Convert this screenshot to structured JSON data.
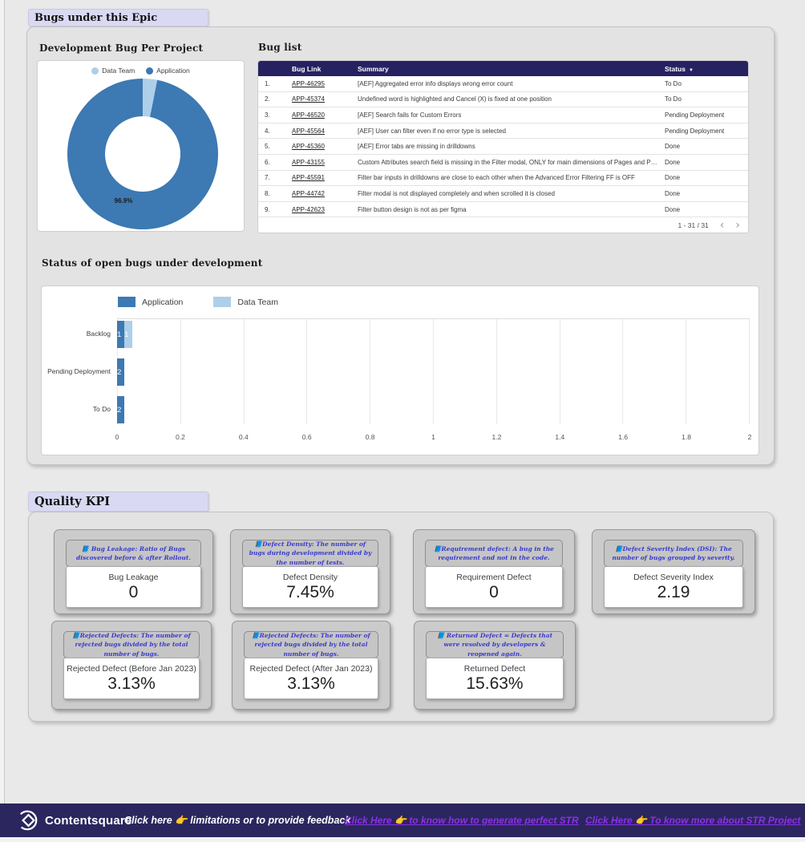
{
  "sections": {
    "bugs_title": "Bugs under this Epic",
    "kpi_title": "Quality KPI"
  },
  "colors": {
    "application": "#3D79B2",
    "data_team": "#AECFE9",
    "header_navy": "#262262",
    "footer_navy": "#2B265E",
    "link_purple": "#8B30E8",
    "lavender": "#D9D9F3",
    "tooltip_blue": "#3A3ACC"
  },
  "icons": {
    "sort_desc": "▼",
    "chevron_left": "‹",
    "chevron_right": "›"
  },
  "bug_list": {
    "title": "Bug list",
    "columns": {
      "link": "Bug Link",
      "summary": "Summary",
      "status": "Status"
    },
    "rows": [
      {
        "num": "1.",
        "link": "APP-46295",
        "summary": "[AEF] Aggregated error info displays wrong error count",
        "status": "To Do"
      },
      {
        "num": "2.",
        "link": "APP-45374",
        "summary": "Undefined word is highlighted and Cancel (X) is fixed at one position",
        "status": "To Do"
      },
      {
        "num": "3.",
        "link": "APP-46520",
        "summary": "[AEF] Search fails for Custom Errors",
        "status": "Pending Deployment"
      },
      {
        "num": "4.",
        "link": "APP-45564",
        "summary": "[AEF] User can filter even if no error type is selected",
        "status": "Pending Deployment"
      },
      {
        "num": "5.",
        "link": "APP-45360",
        "summary": "[AEF] Error tabs are missing in drilldowns",
        "status": "Done"
      },
      {
        "num": "6.",
        "link": "APP-43155",
        "summary": "Custom Attributes search field is missing in the Filter modal, ONLY for main dimensions of Pages and P…",
        "status": "Done"
      },
      {
        "num": "7.",
        "link": "APP-45591",
        "summary": "Filter bar inputs in drilldowns are close to each other when the Advanced Error Filtering FF is OFF",
        "status": "Done"
      },
      {
        "num": "8.",
        "link": "APP-44742",
        "summary": "Filter modal is not displayed completely and when scrolled it is closed",
        "status": "Done"
      },
      {
        "num": "9.",
        "link": "APP-42623",
        "summary": "Filter button design is not as per figma",
        "status": "Done"
      }
    ],
    "pagination": "1 - 31 / 31"
  },
  "chart_data": [
    {
      "type": "pie",
      "title": "Development Bug Per Project",
      "labels": [
        "Data Team",
        "Application"
      ],
      "values": [
        3.1,
        96.9
      ],
      "unit": "%",
      "slice_colors": [
        "#AECFE9",
        "#3D79B2"
      ],
      "donut": true,
      "visible_label": "96.9%",
      "legend_position": "top"
    },
    {
      "type": "bar",
      "title": "Status of open bugs under development",
      "orientation": "horizontal",
      "stacked": true,
      "categories": [
        "Backlog",
        "Pending Deployment",
        "To Do"
      ],
      "series": [
        {
          "name": "Application",
          "color": "#3D79B2",
          "values": [
            1,
            2,
            2
          ]
        },
        {
          "name": "Data Team",
          "color": "#AECFE9",
          "values": [
            1,
            0,
            0
          ]
        }
      ],
      "xlim": [
        0,
        2
      ],
      "xtick_labels": [
        "0",
        "0.2",
        "0.4",
        "0.6",
        "0.8",
        "1",
        "1.2",
        "1.4",
        "1.6",
        "1.8",
        "2"
      ],
      "grid": true,
      "legend_position": "top"
    }
  ],
  "kpi": {
    "cards": [
      {
        "tooltip": "📘 Bug Leakage: Ratio of Bugs discovered before & after Rollout.",
        "label": "Bug Leakage",
        "value": "0"
      },
      {
        "tooltip": "📘Defect Density: The number of bugs during development divided by the number of tests.",
        "label": "Defect Density",
        "value": "7.45%"
      },
      {
        "tooltip": "📘Requirement defect: A bug in the requirement and not in the code.",
        "label": "Requirement Defect",
        "value": "0"
      },
      {
        "tooltip": "📘Defect Severity Index (DSI): The number of bugs grouped by severity.",
        "label": "Defect Severity Index",
        "value": "2.19"
      },
      {
        "tooltip": "📘Rejected Defects: The number of rejected bugs divided by the total number of bugs.",
        "label": "Rejected Defect (Before Jan 2023)",
        "value": "3.13%"
      },
      {
        "tooltip": "📘Rejected Defects: The number of rejected bugs divided by the total number of bugs.",
        "label": "Rejected Defect (After Jan 2023)",
        "value": "3.13%"
      },
      {
        "tooltip": "📘 Returned Defect = Defects that were resolved by developers & reopened again.",
        "label": "Returned Defect",
        "value": "15.63%"
      }
    ]
  },
  "footer": {
    "brand": "Contentsquare",
    "feedback_text": "Click here 👉 limitations or to provide feedback",
    "link_str_guide": "Click Here 👉 to know how to generate perfect STR",
    "link_str_project": "Click Here 👉 To know more about STR Project"
  }
}
